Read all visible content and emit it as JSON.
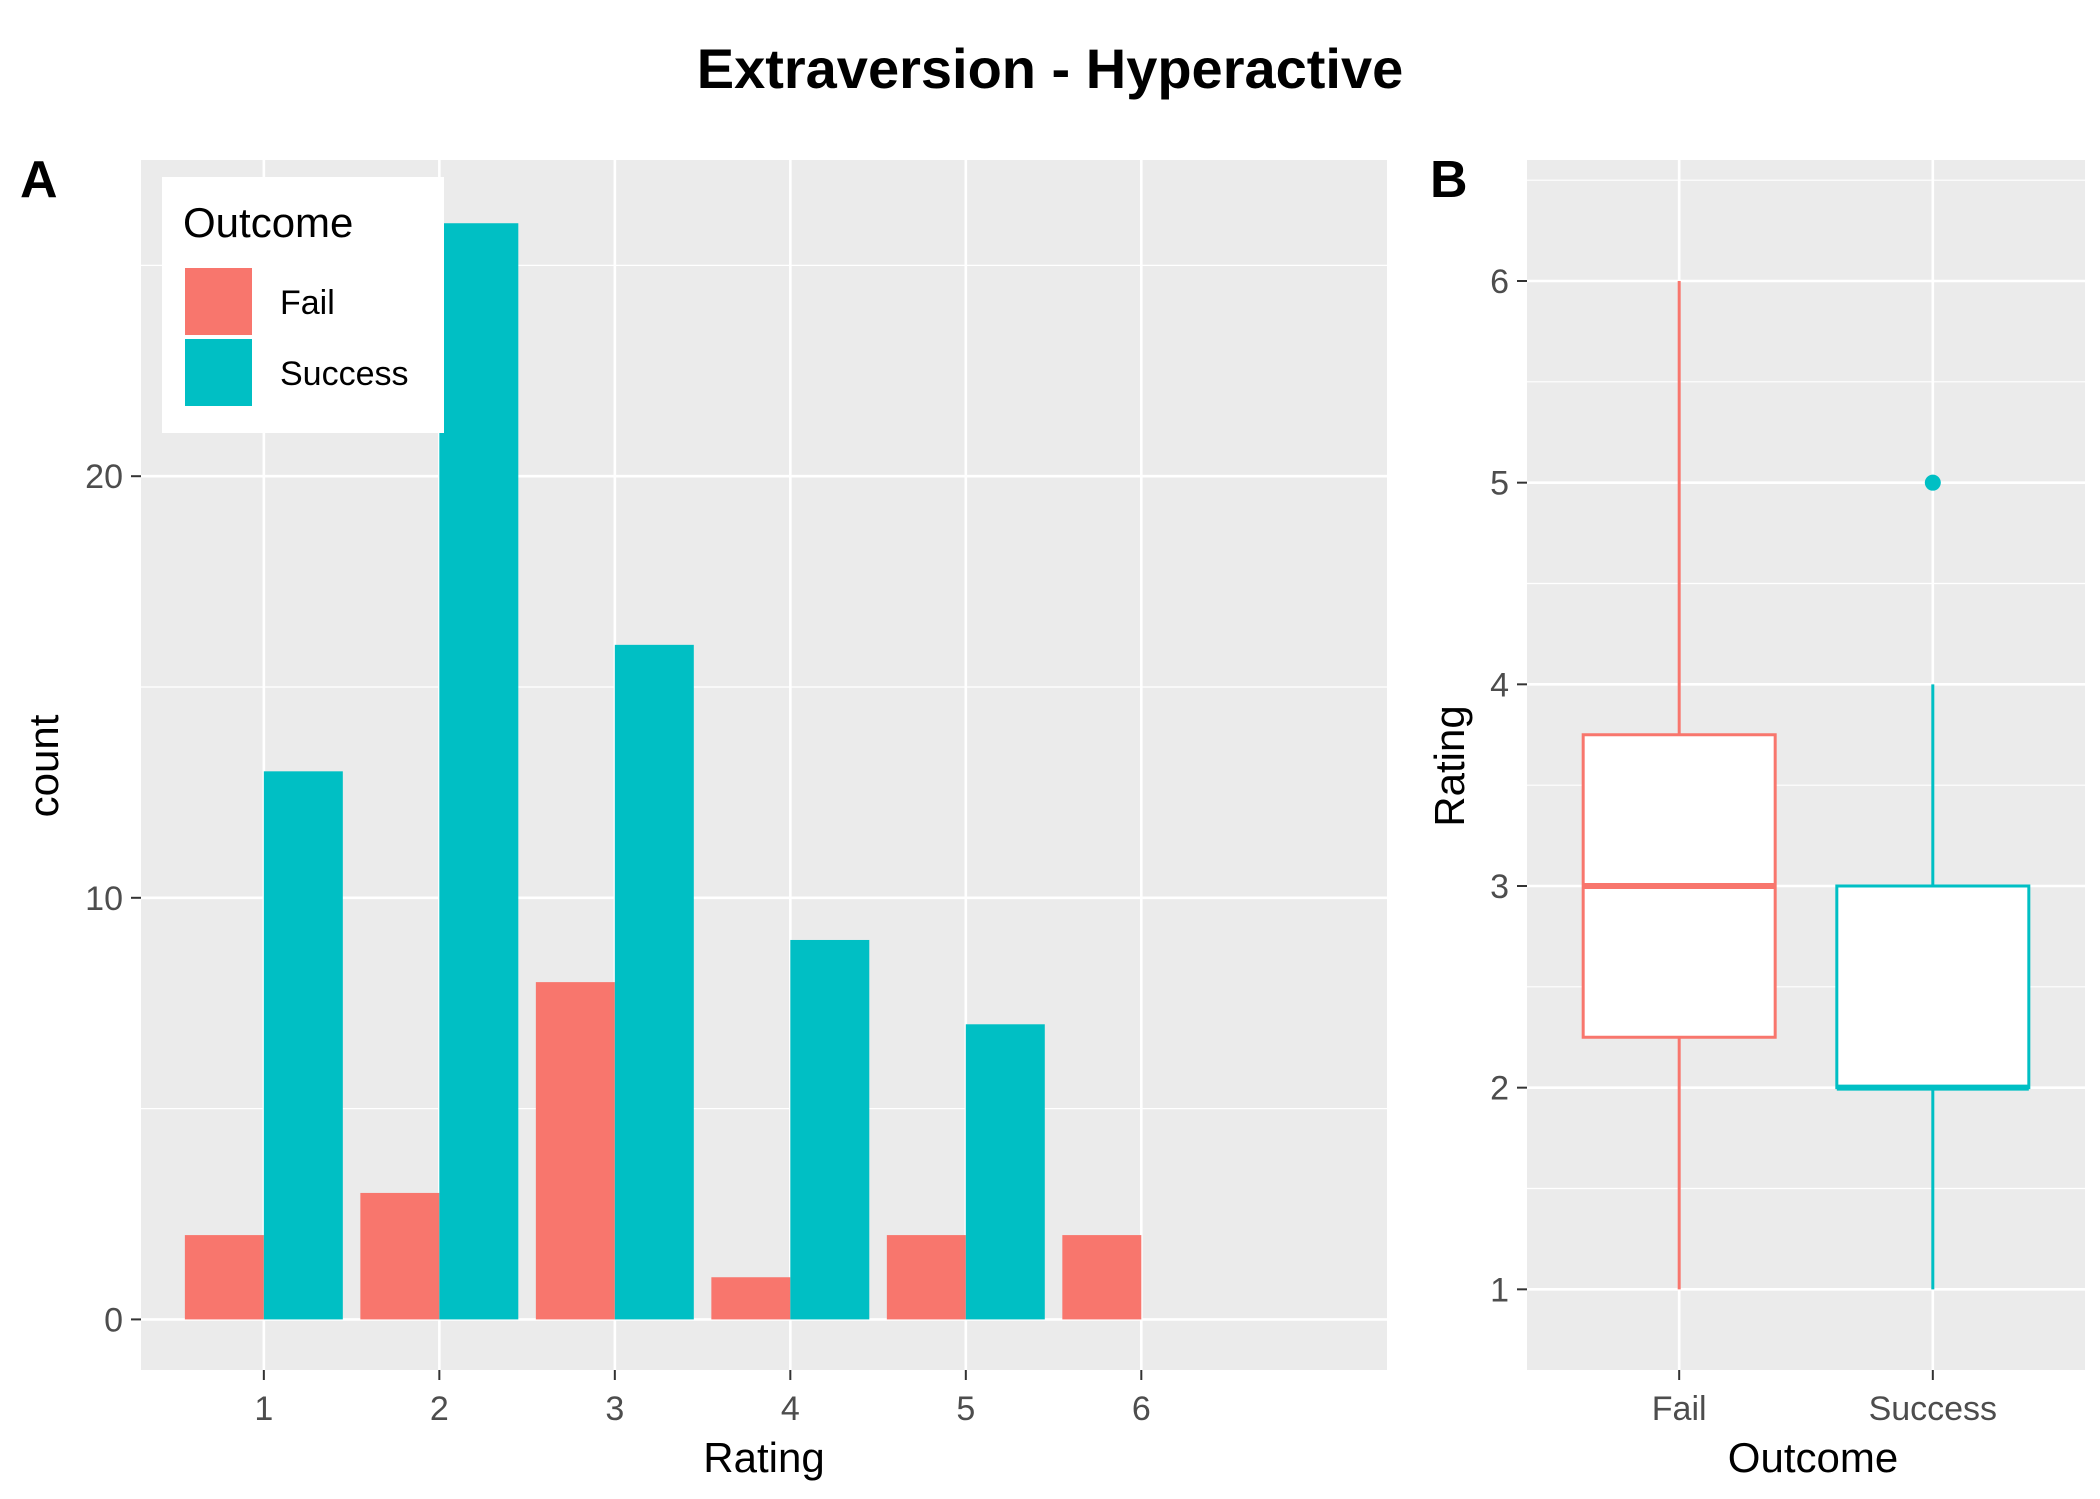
{
  "title": "Extraversion - Hyperactive",
  "colors": {
    "Fail": "#F8766D",
    "Success": "#00BFC4",
    "panel": "#EBEBEB",
    "grid": "#FFFFFF"
  },
  "chart_data": [
    {
      "panel": "A",
      "type": "bar",
      "xlabel": "Rating",
      "ylabel": "count",
      "categories": [
        "1",
        "2",
        "3",
        "4",
        "5",
        "6"
      ],
      "series": [
        {
          "name": "Fail",
          "values": [
            2,
            3,
            8,
            1,
            2,
            2
          ]
        },
        {
          "name": "Success",
          "values": [
            13,
            26,
            16,
            9,
            7,
            0
          ]
        }
      ],
      "xlim": [
        0.3,
        7.4
      ],
      "ylim": [
        -1.2,
        27.5
      ],
      "y_ticks": [
        0,
        10,
        20
      ],
      "x_ticks": [
        1,
        2,
        3,
        4,
        5,
        6
      ],
      "legend": {
        "title": "Outcome",
        "placement": "top-left",
        "entries": [
          "Fail",
          "Success"
        ]
      },
      "grid": true
    },
    {
      "panel": "B",
      "type": "box",
      "xlabel": "Outcome",
      "ylabel": "Rating",
      "categories": [
        "Fail",
        "Success"
      ],
      "boxes": [
        {
          "name": "Fail",
          "min": 1,
          "q1": 2.25,
          "median": 3,
          "q3": 3.75,
          "max": 6,
          "outliers": []
        },
        {
          "name": "Success",
          "min": 1,
          "q1": 2,
          "median": 2,
          "q3": 3,
          "max": 4,
          "outliers": [
            5
          ]
        }
      ],
      "ylim": [
        0.6,
        6.6
      ],
      "y_ticks": [
        1,
        2,
        3,
        4,
        5,
        6
      ],
      "grid": true
    }
  ]
}
